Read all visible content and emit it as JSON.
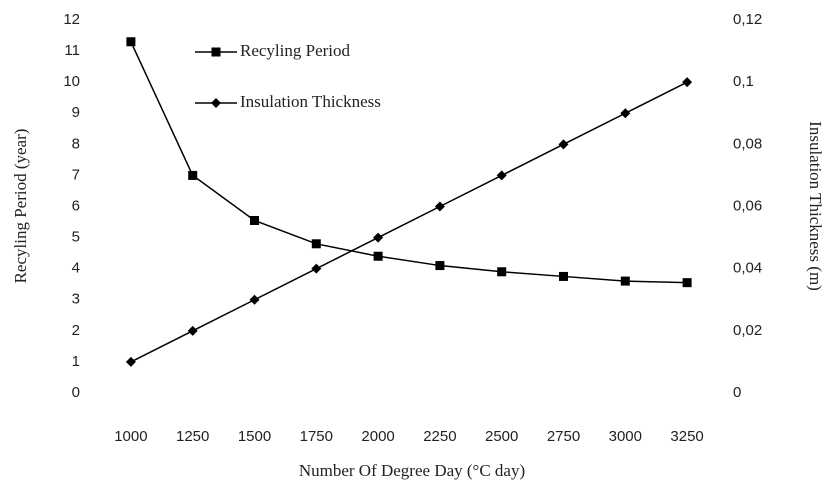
{
  "chart_data": {
    "type": "line",
    "categories": [
      "1000",
      "1250",
      "1500",
      "1750",
      "2000",
      "2250",
      "2500",
      "2750",
      "3000",
      "3250"
    ],
    "series": [
      {
        "name": "Recyling Period",
        "color": "#000000",
        "marker": "square",
        "axis": "y",
        "values": [
          11.3,
          7.0,
          5.55,
          4.8,
          4.4,
          4.1,
          3.9,
          3.75,
          3.6,
          3.55
        ]
      },
      {
        "name": "Insulation Thickness",
        "color": "#000000",
        "marker": "diamond",
        "axis": "y2",
        "values": [
          0.01,
          0.02,
          0.03,
          0.04,
          0.05,
          0.06,
          0.07,
          0.08,
          0.09,
          0.1
        ]
      }
    ],
    "ylabel": "Recyling Period (year)",
    "y2label": "Insulation Thickness (m)",
    "xlabel": "Number Of Degree Day (°C  day)",
    "ylim": [
      0,
      12
    ],
    "yticks": [
      0,
      1,
      2,
      3,
      4,
      5,
      6,
      7,
      8,
      9,
      10,
      11,
      12
    ],
    "y2lim": [
      0,
      0.12
    ],
    "y2ticks": [
      0,
      {
        "value": 0.02,
        "label": "0,02"
      },
      {
        "value": 0.04,
        "label": "0,04"
      },
      {
        "value": 0.06,
        "label": "0,06"
      },
      {
        "value": 0.08,
        "label": "0,08"
      },
      {
        "value": 0.1,
        "label": "0,1"
      },
      {
        "value": 0.12,
        "label": "0,12"
      }
    ],
    "legend": "top-left",
    "grid": false
  }
}
